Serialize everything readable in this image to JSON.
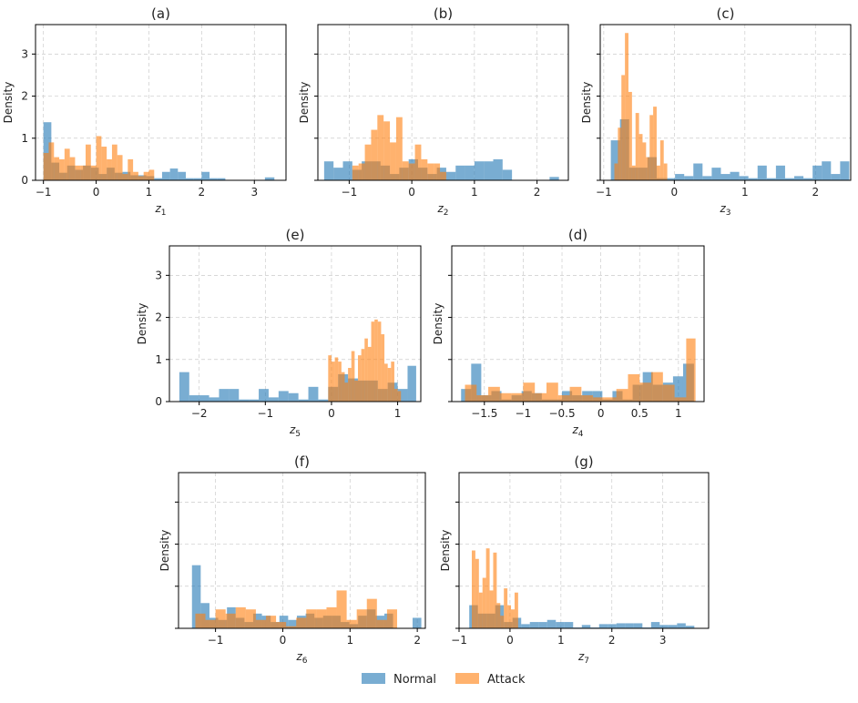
{
  "colors": {
    "normal": "#1f77b4",
    "attack": "#ff7f0e",
    "grid": "#cccccc"
  },
  "legend": {
    "items": [
      {
        "label": "Normal",
        "key": "normal"
      },
      {
        "label": "Attack",
        "key": "attack"
      }
    ],
    "placement": "bottom-center"
  },
  "chart_data": [
    {
      "type": "histogram",
      "title": "(a)",
      "xlabel_main": "z",
      "xlabel_sub": "1",
      "ylabel": "Density",
      "xlim": [
        -1.15,
        3.6
      ],
      "ylim": [
        0,
        3.7
      ],
      "xticks": [
        -1,
        0,
        1,
        2,
        3
      ],
      "yticks": [
        0,
        1,
        2,
        3
      ],
      "ytick_labels": true,
      "series": [
        {
          "name": "Normal",
          "key": "normal",
          "edges": [
            -1.0,
            -0.85,
            -0.7,
            -0.55,
            -0.4,
            -0.25,
            -0.1,
            0.05,
            0.2,
            0.35,
            0.5,
            0.65,
            0.8,
            0.95,
            1.1,
            1.25,
            1.4,
            1.55,
            1.7,
            1.85,
            2.0,
            2.15,
            2.3,
            2.45
          ],
          "values": [
            1.38,
            0.42,
            0.18,
            0.35,
            0.25,
            0.35,
            0.3,
            0.15,
            0.3,
            0.18,
            0.2,
            0.12,
            0.12,
            0.1,
            0.05,
            0.2,
            0.28,
            0.2,
            0.05,
            0.05,
            0.2,
            0.05,
            0.05
          ]
        },
        {
          "name": "Normal",
          "key": "normal",
          "edges": [
            3.2,
            3.38
          ],
          "values": [
            0.07
          ]
        },
        {
          "name": "Attack",
          "key": "attack",
          "edges": [
            -1.0,
            -0.9,
            -0.8,
            -0.7,
            -0.6,
            -0.5,
            -0.4,
            -0.3,
            -0.2,
            -0.1,
            0.0,
            0.1,
            0.2,
            0.3,
            0.4,
            0.5,
            0.6,
            0.7,
            0.8,
            0.9,
            1.0,
            1.1
          ],
          "values": [
            0.65,
            0.9,
            0.55,
            0.5,
            0.75,
            0.55,
            0.35,
            0.35,
            0.85,
            0.35,
            1.05,
            0.8,
            0.5,
            0.85,
            0.6,
            0.15,
            0.5,
            0.2,
            0.1,
            0.2,
            0.25
          ]
        }
      ]
    },
    {
      "type": "histogram",
      "title": "(b)",
      "xlabel_main": "z",
      "xlabel_sub": "2",
      "ylabel": "Density",
      "xlim": [
        -1.5,
        2.5
      ],
      "ylim": [
        0,
        3.7
      ],
      "xticks": [
        -1,
        0,
        1,
        2
      ],
      "yticks": [
        0,
        1,
        2,
        3
      ],
      "ytick_labels": false,
      "series": [
        {
          "name": "Normal",
          "key": "normal",
          "edges": [
            -1.4,
            -1.25,
            -1.1,
            -0.95,
            -0.8,
            -0.65,
            -0.5,
            -0.35,
            -0.2,
            -0.05,
            0.1,
            0.25,
            0.4,
            0.55,
            0.7,
            0.85,
            1.0,
            1.15,
            1.3,
            1.45,
            1.6
          ],
          "values": [
            0.45,
            0.3,
            0.45,
            0.25,
            0.45,
            0.45,
            0.35,
            0.15,
            0.3,
            0.5,
            0.3,
            0.15,
            0.3,
            0.2,
            0.35,
            0.35,
            0.45,
            0.45,
            0.5,
            0.25
          ]
        },
        {
          "name": "Normal",
          "key": "normal",
          "edges": [
            2.2,
            2.35
          ],
          "values": [
            0.08
          ]
        },
        {
          "name": "Attack",
          "key": "attack",
          "edges": [
            -0.95,
            -0.85,
            -0.75,
            -0.65,
            -0.55,
            -0.45,
            -0.35,
            -0.25,
            -0.15,
            -0.05,
            0.05,
            0.15,
            0.25,
            0.35,
            0.45,
            0.55
          ],
          "values": [
            0.35,
            0.4,
            0.85,
            1.2,
            1.55,
            1.4,
            0.9,
            1.5,
            0.45,
            0.4,
            0.85,
            0.5,
            0.4,
            0.4,
            0.2
          ]
        }
      ]
    },
    {
      "type": "histogram",
      "title": "(c)",
      "xlabel_main": "z",
      "xlabel_sub": "3",
      "ylabel": "Density",
      "xlim": [
        -1.05,
        2.5
      ],
      "ylim": [
        0,
        3.7
      ],
      "xticks": [
        -1,
        0,
        1,
        2
      ],
      "yticks": [
        0,
        1,
        2,
        3
      ],
      "ytick_labels": false,
      "series": [
        {
          "name": "Normal",
          "key": "normal",
          "edges": [
            -0.9,
            -0.77,
            -0.64,
            -0.51,
            -0.38,
            -0.25,
            -0.12,
            0.01,
            0.14,
            0.27,
            0.4,
            0.53,
            0.66,
            0.79,
            0.92,
            1.05,
            1.18,
            1.31,
            1.44,
            1.57,
            1.7,
            1.83,
            1.96,
            2.09,
            2.22,
            2.35,
            2.48
          ],
          "values": [
            0.95,
            1.45,
            0.3,
            0.3,
            0.55,
            0.05,
            0.05,
            0.15,
            0.1,
            0.4,
            0.1,
            0.3,
            0.15,
            0.2,
            0.1,
            0.05,
            0.35,
            0.05,
            0.35,
            0.05,
            0.1,
            0.05,
            0.35,
            0.45,
            0.15,
            0.45
          ]
        },
        {
          "name": "Attack",
          "key": "attack",
          "edges": [
            -0.85,
            -0.8,
            -0.75,
            -0.7,
            -0.65,
            -0.6,
            -0.55,
            -0.5,
            -0.45,
            -0.4,
            -0.35,
            -0.3,
            -0.25,
            -0.2,
            -0.15,
            -0.1
          ],
          "values": [
            0.4,
            1.25,
            2.5,
            3.5,
            2.1,
            0.35,
            1.6,
            1.1,
            0.9,
            0.55,
            1.55,
            1.75,
            0.35,
            0.95,
            0.4
          ]
        }
      ]
    },
    {
      "type": "histogram",
      "title": "(e)",
      "xlabel_main": "z",
      "xlabel_sub": "5",
      "ylabel": "Density",
      "xlim": [
        -2.45,
        1.35
      ],
      "ylim": [
        0,
        3.7
      ],
      "xticks": [
        -2,
        -1,
        0,
        1
      ],
      "yticks": [
        0,
        1,
        2,
        3
      ],
      "ytick_labels": true,
      "series": [
        {
          "name": "Normal",
          "key": "normal",
          "edges": [
            -2.3,
            -2.15,
            -2.0,
            -1.85,
            -1.7,
            -1.55,
            -1.4,
            -1.25,
            -1.1,
            -0.95,
            -0.8,
            -0.65,
            -0.5,
            -0.35,
            -0.2,
            -0.05,
            0.1,
            0.25,
            0.4,
            0.55,
            0.7,
            0.85,
            1.0,
            1.15,
            1.28
          ],
          "values": [
            0.7,
            0.15,
            0.15,
            0.1,
            0.3,
            0.3,
            0.05,
            0.05,
            0.3,
            0.1,
            0.25,
            0.2,
            0.05,
            0.35,
            0.05,
            0.35,
            0.65,
            0.55,
            0.5,
            0.5,
            0.3,
            0.45,
            0.3,
            0.85
          ]
        },
        {
          "name": "Attack",
          "key": "attack",
          "edges": [
            -0.05,
            0.0,
            0.05,
            0.1,
            0.15,
            0.2,
            0.25,
            0.3,
            0.35,
            0.4,
            0.45,
            0.5,
            0.55,
            0.6,
            0.65,
            0.7,
            0.75,
            0.8,
            0.85,
            0.9,
            0.95,
            1.0,
            1.05
          ],
          "values": [
            1.1,
            0.95,
            1.05,
            0.95,
            0.7,
            0.45,
            0.8,
            1.2,
            0.5,
            1.1,
            1.25,
            1.5,
            1.3,
            1.9,
            1.95,
            1.9,
            1.6,
            0.9,
            0.8,
            0.95,
            0.3,
            0.25
          ]
        }
      ]
    },
    {
      "type": "histogram",
      "title": "(d)",
      "xlabel_main": "z",
      "xlabel_sub": "4",
      "ylabel": "Density",
      "xlim": [
        -1.92,
        1.33
      ],
      "ylim": [
        0,
        3.7
      ],
      "xticks": [
        -1.5,
        -1.0,
        -0.5,
        0.0,
        0.5,
        1.0
      ],
      "yticks": [
        0,
        1,
        2,
        3
      ],
      "ytick_labels": false,
      "series": [
        {
          "name": "Normal",
          "key": "normal",
          "edges": [
            -1.8,
            -1.67,
            -1.54,
            -1.41,
            -1.28,
            -1.15,
            -1.02,
            -0.89,
            -0.76,
            -0.63,
            -0.5,
            -0.37,
            -0.24,
            -0.11,
            0.02,
            0.15,
            0.28,
            0.41,
            0.54,
            0.67,
            0.8,
            0.93,
            1.06,
            1.2
          ],
          "values": [
            0.3,
            0.9,
            0.15,
            0.25,
            0.05,
            0.15,
            0.25,
            0.2,
            0.05,
            0.05,
            0.25,
            0.15,
            0.25,
            0.25,
            0.05,
            0.25,
            0.05,
            0.4,
            0.7,
            0.4,
            0.45,
            0.6,
            0.9
          ]
        },
        {
          "name": "Attack",
          "key": "attack",
          "edges": [
            -1.75,
            -1.6,
            -1.45,
            -1.3,
            -1.15,
            -1.0,
            -0.85,
            -0.7,
            -0.55,
            -0.4,
            -0.25,
            -0.1,
            0.05,
            0.2,
            0.35,
            0.5,
            0.65,
            0.8,
            0.95,
            1.1,
            1.22
          ],
          "values": [
            0.4,
            0.15,
            0.35,
            0.2,
            0.2,
            0.45,
            0.2,
            0.45,
            0.15,
            0.35,
            0.15,
            0.1,
            0.1,
            0.3,
            0.65,
            0.45,
            0.7,
            0.4,
            0.1,
            1.5
          ]
        }
      ]
    },
    {
      "type": "histogram",
      "title": "(f)",
      "xlabel_main": "z",
      "xlabel_sub": "6",
      "ylabel": "Density",
      "xlim": [
        -1.55,
        2.12
      ],
      "ylim": [
        0,
        3.7
      ],
      "xticks": [
        -1,
        0,
        1,
        2
      ],
      "yticks": [
        0,
        1,
        2,
        3
      ],
      "ytick_labels": false,
      "series": [
        {
          "name": "Normal",
          "key": "normal",
          "edges": [
            -1.35,
            -1.22,
            -1.09,
            -0.96,
            -0.83,
            -0.7,
            -0.57,
            -0.44,
            -0.31,
            -0.18,
            -0.05,
            0.08,
            0.21,
            0.34,
            0.47,
            0.6,
            0.73,
            0.86,
            0.99,
            1.12,
            1.25,
            1.38,
            1.51,
            1.64
          ],
          "values": [
            1.5,
            0.6,
            0.25,
            0.2,
            0.5,
            0.25,
            0.15,
            0.35,
            0.3,
            0.15,
            0.3,
            0.2,
            0.3,
            0.35,
            0.25,
            0.3,
            0.3,
            0.15,
            0.1,
            0.3,
            0.45,
            0.3,
            0.35
          ]
        },
        {
          "name": "Normal",
          "key": "normal",
          "edges": [
            1.93,
            2.06
          ],
          "values": [
            0.25
          ]
        },
        {
          "name": "Attack",
          "key": "attack",
          "edges": [
            -1.3,
            -1.15,
            -1.0,
            -0.85,
            -0.7,
            -0.55,
            -0.4,
            -0.25,
            -0.1,
            0.05,
            0.2,
            0.35,
            0.5,
            0.65,
            0.8,
            0.95,
            1.1,
            1.25,
            1.4,
            1.55,
            1.7
          ],
          "values": [
            0.35,
            0.2,
            0.45,
            0.35,
            0.5,
            0.45,
            0.2,
            0.3,
            0.15,
            0.05,
            0.25,
            0.45,
            0.45,
            0.5,
            0.9,
            0.2,
            0.45,
            0.7,
            0.2,
            0.45
          ]
        }
      ]
    },
    {
      "type": "histogram",
      "title": "(g)",
      "xlabel_main": "z",
      "xlabel_sub": "7",
      "ylabel": "Density",
      "xlim": [
        -1.0,
        3.9
      ],
      "ylim": [
        0,
        3.7
      ],
      "xticks": [
        -1,
        0,
        1,
        2,
        3
      ],
      "yticks": [
        0,
        1,
        2,
        3
      ],
      "ytick_labels": false,
      "series": [
        {
          "name": "Normal",
          "key": "normal",
          "edges": [
            -0.8,
            -0.63,
            -0.46,
            -0.29,
            -0.12,
            0.05,
            0.22,
            0.39,
            0.56,
            0.73,
            0.9,
            1.07,
            1.24,
            1.41,
            1.58,
            1.75,
            1.92,
            2.09,
            2.26,
            2.43,
            2.6,
            2.77,
            2.94,
            3.11,
            3.28,
            3.45,
            3.62
          ],
          "values": [
            0.55,
            0.35,
            0.35,
            0.55,
            0.15,
            0.25,
            0.1,
            0.15,
            0.15,
            0.2,
            0.15,
            0.15,
            0.02,
            0.08,
            0.02,
            0.1,
            0.1,
            0.12,
            0.12,
            0.12,
            0.02,
            0.15,
            0.08,
            0.08,
            0.12,
            0.06
          ]
        },
        {
          "name": "Attack",
          "key": "attack",
          "edges": [
            -0.75,
            -0.68,
            -0.61,
            -0.54,
            -0.47,
            -0.4,
            -0.33,
            -0.26,
            -0.19,
            -0.12,
            -0.05,
            0.02,
            0.09,
            0.16
          ],
          "values": [
            1.85,
            1.65,
            0.85,
            1.2,
            1.9,
            0.9,
            1.8,
            0.6,
            0.3,
            0.95,
            0.55,
            0.45,
            0.85
          ]
        }
      ]
    }
  ]
}
